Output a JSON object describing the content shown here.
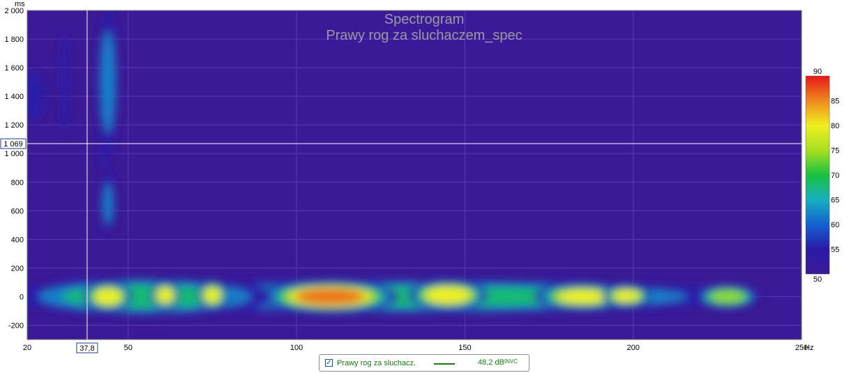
{
  "chart_data": {
    "type": "heatmap",
    "title": "Spectrogram",
    "subtitle": "Prawy rog za sluchaczem_spec",
    "x_unit": "Hz",
    "y_unit": "ms",
    "xlim": [
      20,
      250
    ],
    "ylim": [
      -300,
      2000
    ],
    "x_ticks": [
      {
        "value": 20,
        "label": "20"
      },
      {
        "value": 50,
        "label": "50"
      },
      {
        "value": 100,
        "label": "100"
      },
      {
        "value": 150,
        "label": "150"
      },
      {
        "value": 200,
        "label": "200"
      },
      {
        "value": 250,
        "label": "250"
      }
    ],
    "y_ticks": [
      {
        "value": -200,
        "label": "-200"
      },
      {
        "value": 0,
        "label": "0"
      },
      {
        "value": 200,
        "label": "200"
      },
      {
        "value": 400,
        "label": "400"
      },
      {
        "value": 600,
        "label": "600"
      },
      {
        "value": 800,
        "label": "800"
      },
      {
        "value": 1000,
        "label": "1 000"
      },
      {
        "value": 1200,
        "label": "1 200"
      },
      {
        "value": 1400,
        "label": "1 400"
      },
      {
        "value": 1600,
        "label": "1 600"
      },
      {
        "value": 1800,
        "label": "1 800"
      },
      {
        "value": 2000,
        "label": "2 000"
      }
    ],
    "cursor": {
      "x": 37.8,
      "x_label": "37,8",
      "y": 1069,
      "y_label": "1 069"
    },
    "colorscale": {
      "min": 50,
      "max": 90,
      "ticks": [
        {
          "value": 55,
          "label": "55"
        },
        {
          "value": 60,
          "label": "60"
        },
        {
          "value": 65,
          "label": "65"
        },
        {
          "value": 70,
          "label": "70"
        },
        {
          "value": 75,
          "label": "75"
        },
        {
          "value": 80,
          "label": "80"
        },
        {
          "value": 85,
          "label": "85"
        }
      ],
      "min_label": "50",
      "max_label": "90"
    },
    "blobs": [
      {
        "x": 22,
        "y": 1400,
        "w": 4,
        "h": 220,
        "v": 60
      },
      {
        "x": 31,
        "y": 1500,
        "w": 1.5,
        "h": 500,
        "v": 56
      },
      {
        "x": 44,
        "y": 1500,
        "w": 3.5,
        "h": 600,
        "v": 63
      },
      {
        "x": 44,
        "y": 650,
        "w": 2.5,
        "h": 250,
        "v": 62
      },
      {
        "x": 43,
        "y": 1000,
        "w": 1.5,
        "h": 200,
        "v": 57
      },
      {
        "x": 44,
        "y": 0,
        "w": 8,
        "h": 110,
        "v": 82
      },
      {
        "x": 61,
        "y": 10,
        "w": 5,
        "h": 110,
        "v": 80
      },
      {
        "x": 75,
        "y": 10,
        "w": 5,
        "h": 110,
        "v": 80
      },
      {
        "x": 110,
        "y": 0,
        "w": 22,
        "h": 120,
        "v": 88
      },
      {
        "x": 145,
        "y": 10,
        "w": 13,
        "h": 110,
        "v": 84
      },
      {
        "x": 185,
        "y": 0,
        "w": 16,
        "h": 100,
        "v": 80
      },
      {
        "x": 198,
        "y": 5,
        "w": 8,
        "h": 80,
        "v": 82
      },
      {
        "x": 228,
        "y": 0,
        "w": 10,
        "h": 90,
        "v": 76
      },
      {
        "x": 135,
        "y": 0,
        "w": 120,
        "h": 140,
        "v": 68
      },
      {
        "x": 55,
        "y": 0,
        "w": 45,
        "h": 150,
        "v": 70
      },
      {
        "x": 22,
        "y": 0,
        "w": 5,
        "h": 90,
        "v": 68
      }
    ]
  },
  "legend": {
    "name": "Prawy rog za sluchacz.",
    "value": "48,2 dB",
    "value_sup": "INVC",
    "checked": "✓"
  },
  "colors": {
    "background": "#3a1a96",
    "grid": "#5a3ab8",
    "cursor": "#ffffff",
    "legend_text": "#157a15"
  }
}
